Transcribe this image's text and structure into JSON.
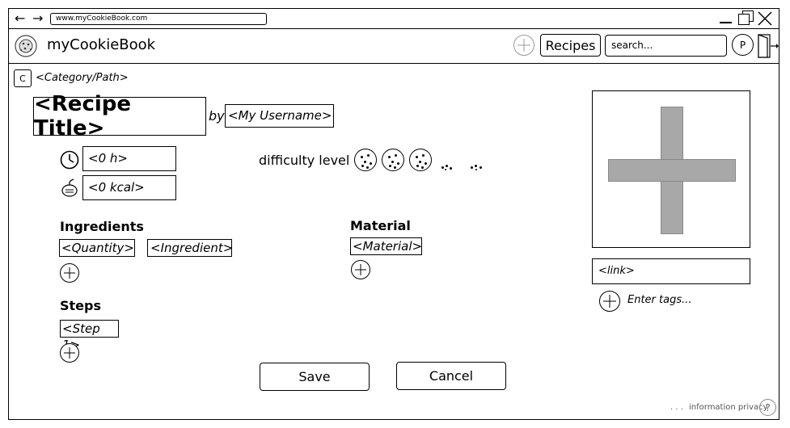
{
  "browser": {
    "url": "www.myCookieBook.com",
    "nav_back": "←",
    "nav_forward": "→",
    "win_min": "—",
    "win_close": "✕"
  },
  "header": {
    "app_name": "myCookieBook",
    "recipes_button": "Recipes",
    "search_placeholder": "search...",
    "profile_initial": "P"
  },
  "breadcrumb": {
    "category_button": "C",
    "path": "<Category/Path>"
  },
  "recipe": {
    "title": "<Recipe Title>",
    "by_label": "by",
    "username": "<My Username>",
    "time_value": "<0 h>",
    "kcal_value": "<0 kcal>",
    "difficulty_label": "difficulty level",
    "difficulty_level": 3,
    "difficulty_max": 5
  },
  "ingredients": {
    "heading": "Ingredients",
    "quantity_placeholder": "<Quantity>",
    "ingredient_placeholder": "<Ingredient>"
  },
  "material": {
    "heading": "Material",
    "material_placeholder": "<Material>"
  },
  "steps": {
    "heading": "Steps",
    "step1_placeholder": "<Step 1>"
  },
  "media": {
    "link_placeholder": "<link>",
    "tags_placeholder": "Enter tags..."
  },
  "actions": {
    "save": "Save",
    "cancel": "Cancel"
  },
  "footer": {
    "dots": ". . .",
    "privacy": "information privacy",
    "help": "?"
  },
  "colors": {
    "image_placeholder_fill": "#a8a8a8",
    "grey_icon": "#999999"
  }
}
